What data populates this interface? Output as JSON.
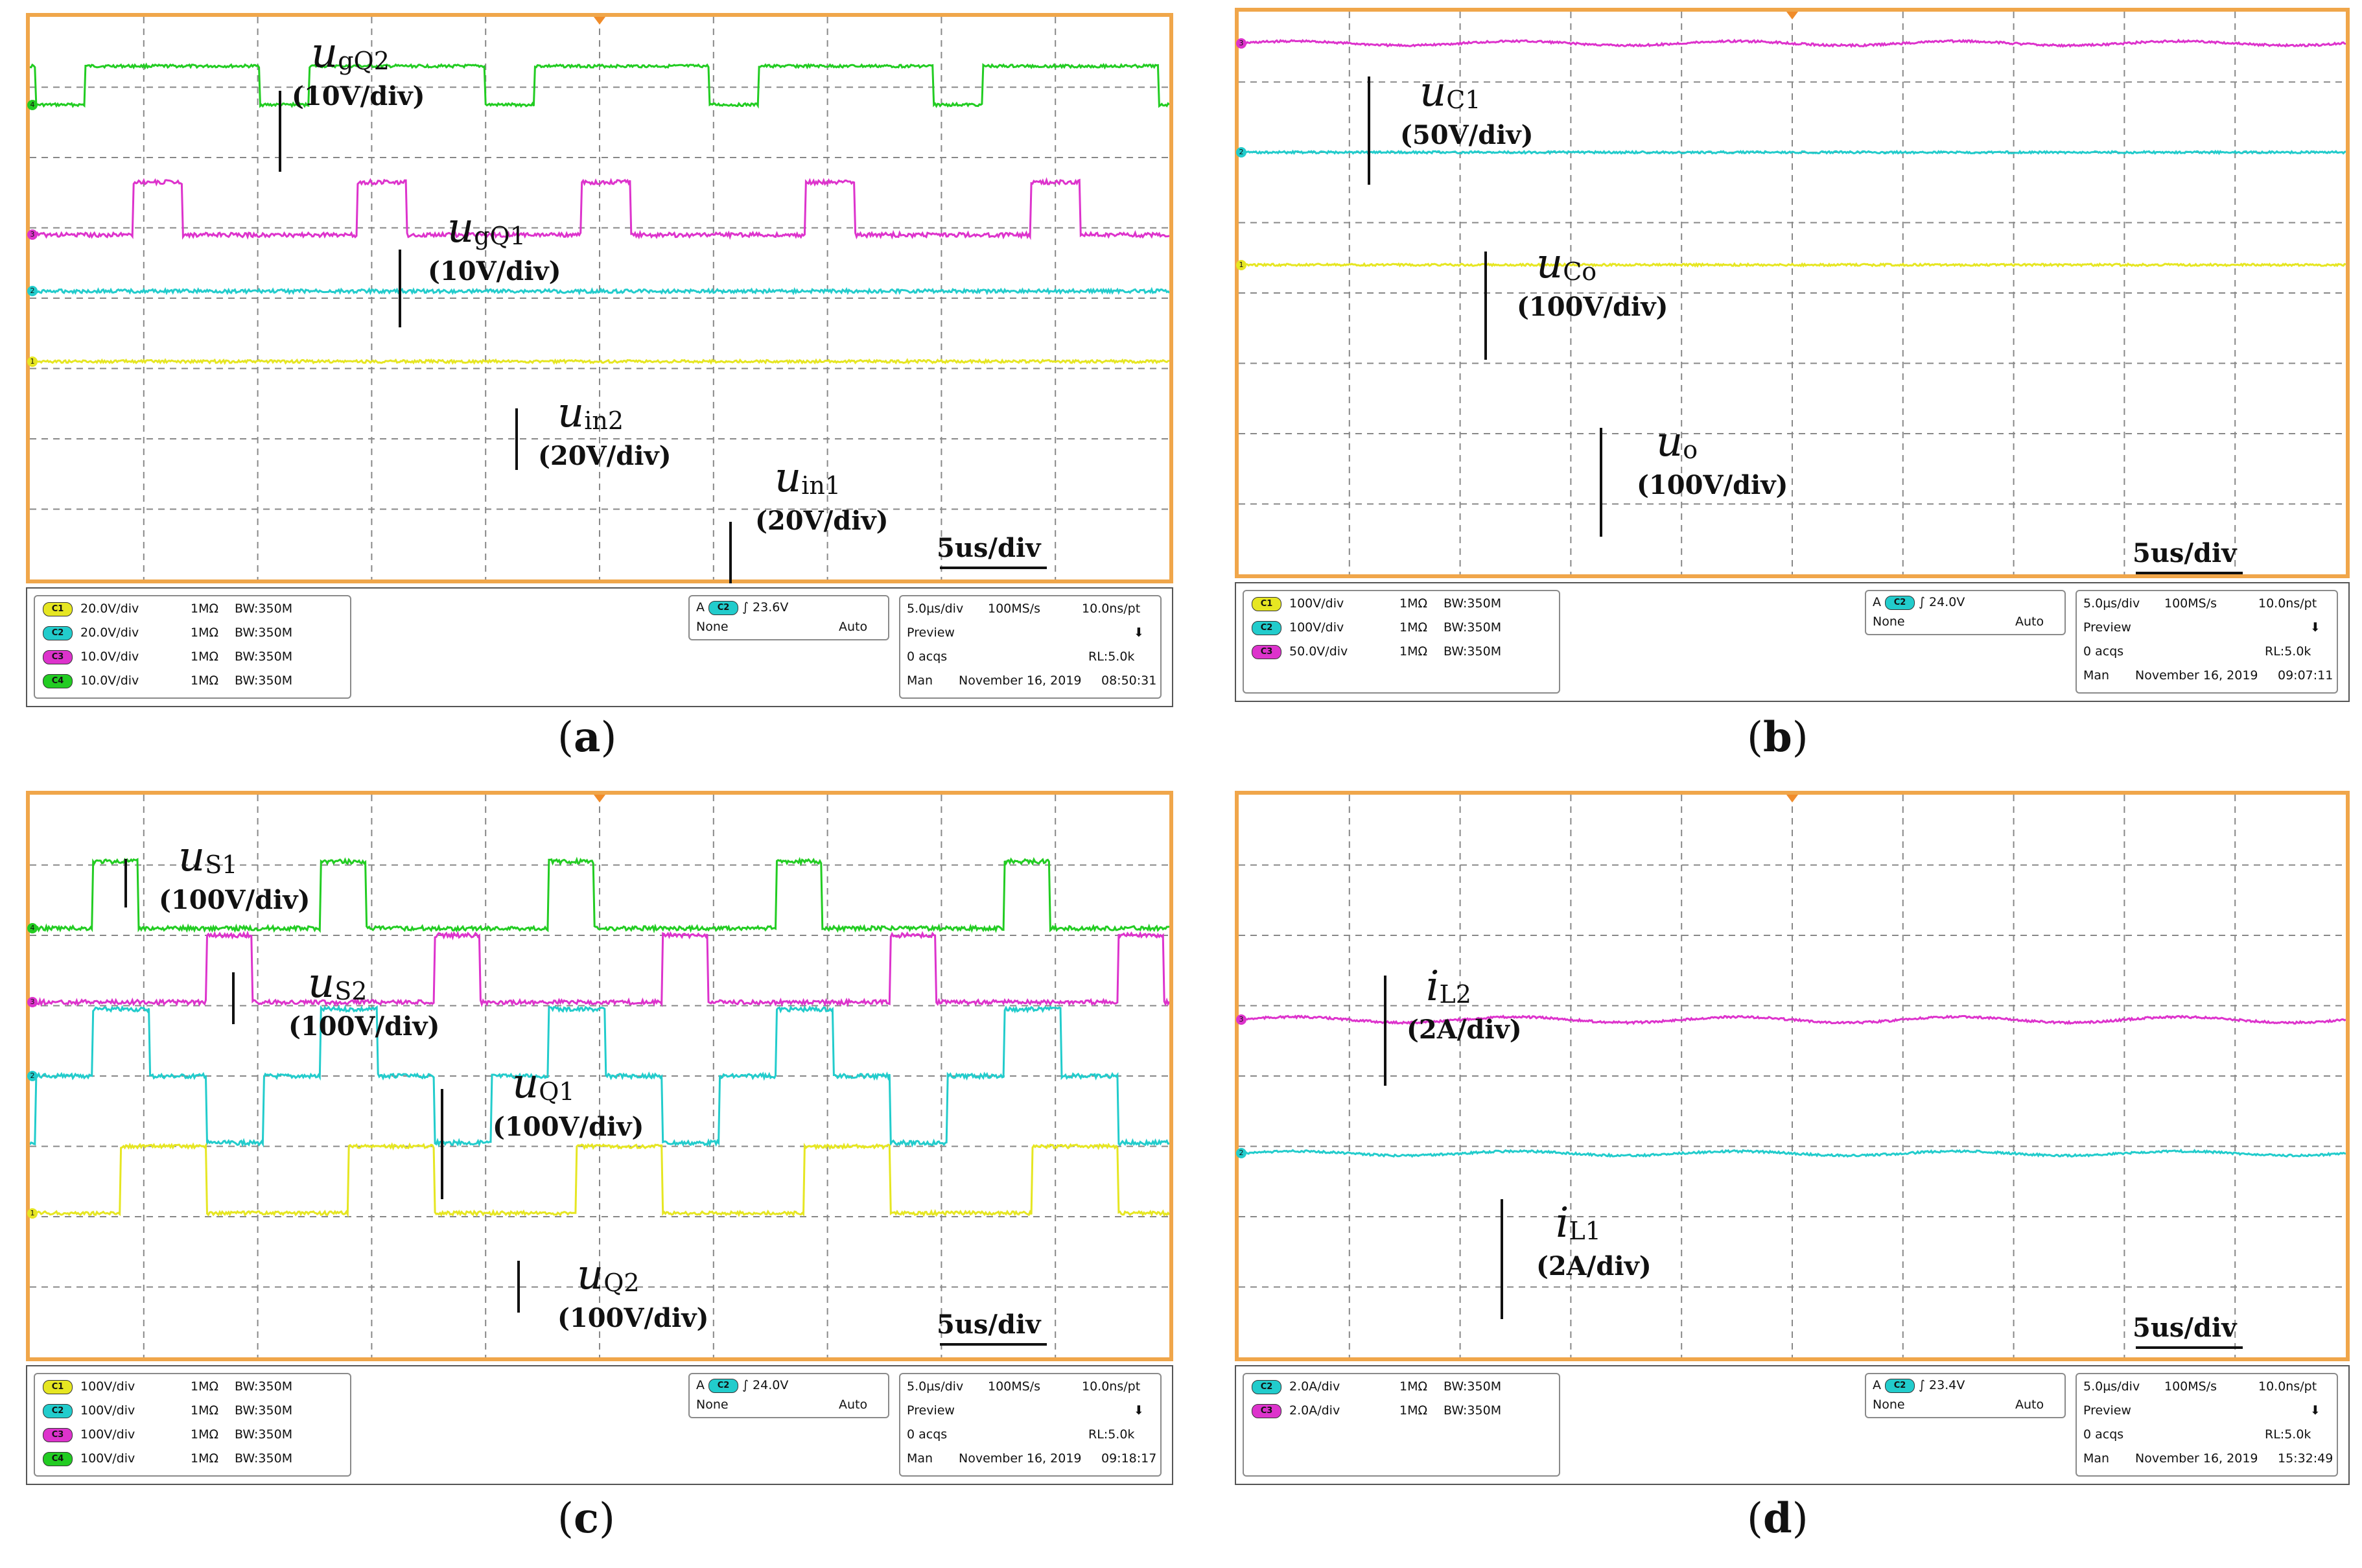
{
  "chart_data": [
    {
      "type": "line",
      "title": "(a)",
      "caption_letter": "a",
      "time_div": "5us/div",
      "series": [
        {
          "name": "ugQ2",
          "sym_main": "u",
          "sym_sub": "gQ2",
          "scale": "(10V/div)",
          "color": "#22cc22",
          "kind": "square",
          "level": 1.25,
          "high": 0.55,
          "period": 1.97,
          "duty": 0.22,
          "start": 0.05,
          "startHigh": true,
          "noise": 0.02
        },
        {
          "name": "ugQ1",
          "sym_main": "u",
          "sym_sub": "gQ1",
          "scale": "(10V/div)",
          "color": "#dd33cc",
          "kind": "square",
          "level": 3.1,
          "high": 0.75,
          "period": 1.97,
          "duty": 0.22,
          "start": 0.9,
          "startHigh": false,
          "noise": 0.03
        },
        {
          "name": "uin2",
          "sym_main": "u",
          "sym_sub": "in2",
          "scale": "(20V/div)",
          "color": "#22cccc",
          "kind": "flat",
          "level": 3.9,
          "noise": 0.025
        },
        {
          "name": "uin1",
          "sym_main": "u",
          "sym_sub": "in1",
          "scale": "(20V/div)",
          "color": "#e6e622",
          "kind": "flat",
          "level": 4.9,
          "noise": 0.02
        }
      ],
      "markers": [
        "4",
        "3",
        "2",
        "1"
      ],
      "channels": [
        {
          "tag": "C1",
          "color": "#e6e622",
          "vdiv": "20.0V/div",
          "imp": "1MΩ",
          "bw": "BW:350M"
        },
        {
          "tag": "C2",
          "color": "#22cccc",
          "vdiv": "20.0V/div",
          "imp": "1MΩ",
          "bw": "BW:350M"
        },
        {
          "tag": "C3",
          "color": "#dd33cc",
          "vdiv": "10.0V/div",
          "imp": "1MΩ",
          "bw": "BW:350M"
        },
        {
          "tag": "C4",
          "color": "#22cc22",
          "vdiv": "10.0V/div",
          "imp": "1MΩ",
          "bw": "BW:350M"
        }
      ],
      "trigger": {
        "a": "A",
        "ch": "C2",
        "level": "23.6V",
        "coupling": "None",
        "mode": "Auto"
      },
      "timebase": {
        "tdiv": "5.0µs/div",
        "rate": "100MS/s",
        "res": "10.0ns/pt",
        "state": "Preview",
        "acqs": "0 acqs",
        "rl": "RL:5.0k",
        "man": "Man",
        "date": "November 16, 2019",
        "time": "08:50:31"
      }
    },
    {
      "type": "line",
      "title": "(b)",
      "caption_letter": "b",
      "time_div": "5us/div",
      "series": [
        {
          "name": "uC1",
          "sym_main": "u",
          "sym_sub": "C1",
          "scale": "(50V/div)",
          "color": "#dd33cc",
          "kind": "wave",
          "level": 0.45,
          "amp": 0.03,
          "period": 2.0,
          "noise": 0.015
        },
        {
          "name": "uCo",
          "sym_main": "u",
          "sym_sub": "Co",
          "scale": "(100V/div)",
          "color": "#22cccc",
          "kind": "flat",
          "level": 2.0,
          "noise": 0.015
        },
        {
          "name": "uo",
          "sym_main": "u",
          "sym_sub": "o",
          "scale": "(100V/div)",
          "color": "#e6e622",
          "kind": "flat",
          "level": 3.6,
          "noise": 0.015
        }
      ],
      "markers": [
        "3",
        "2",
        "1"
      ],
      "channels": [
        {
          "tag": "C1",
          "color": "#e6e622",
          "vdiv": "100V/div",
          "imp": "1MΩ",
          "bw": "BW:350M"
        },
        {
          "tag": "C2",
          "color": "#22cccc",
          "vdiv": "100V/div",
          "imp": "1MΩ",
          "bw": "BW:350M"
        },
        {
          "tag": "C3",
          "color": "#dd33cc",
          "vdiv": "50.0V/div",
          "imp": "1MΩ",
          "bw": "BW:350M"
        }
      ],
      "trigger": {
        "a": "A",
        "ch": "C2",
        "level": "24.0V",
        "coupling": "None",
        "mode": "Auto"
      },
      "timebase": {
        "tdiv": "5.0µs/div",
        "rate": "100MS/s",
        "res": "10.0ns/pt",
        "state": "Preview",
        "acqs": "0 acqs",
        "rl": "RL:5.0k",
        "man": "Man",
        "date": "November 16, 2019",
        "time": "09:07:11"
      }
    },
    {
      "type": "line",
      "title": "(c)",
      "caption_letter": "c",
      "time_div": "5us/div",
      "series": [
        {
          "name": "uS1",
          "sym_main": "u",
          "sym_sub": "S1",
          "scale": "(100V/div)",
          "color": "#22cc22",
          "kind": "square",
          "level": 1.9,
          "high": 0.95,
          "period": 2.0,
          "duty": 0.2,
          "start": 0.55,
          "startHigh": false,
          "noise": 0.03
        },
        {
          "name": "uS2",
          "sym_main": "u",
          "sym_sub": "S2",
          "scale": "(100V/div)",
          "color": "#dd33cc",
          "kind": "square",
          "level": 2.95,
          "high": 0.95,
          "period": 2.0,
          "duty": 0.2,
          "start": 1.55,
          "startHigh": false,
          "noise": 0.03
        },
        {
          "name": "uQ1",
          "sym_main": "u",
          "sym_sub": "Q1",
          "scale": "(100V/div)",
          "color": "#22cccc",
          "kind": "tri",
          "level": 4.0,
          "high": 0.95,
          "low": 0.95,
          "period": 2.0,
          "start": 0.55,
          "noise": 0.03
        },
        {
          "name": "uQ2",
          "sym_main": "u",
          "sym_sub": "Q2",
          "scale": "(100V/div)",
          "color": "#e6e622",
          "kind": "square",
          "level": 5.95,
          "high": 0.95,
          "period": 2.0,
          "duty": 0.62,
          "start": 1.55,
          "startHigh": true,
          "noise": 0.025
        }
      ],
      "markers": [
        "4",
        "3",
        "2",
        "1"
      ],
      "channels": [
        {
          "tag": "C1",
          "color": "#e6e622",
          "vdiv": "100V/div",
          "imp": "1MΩ",
          "bw": "BW:350M"
        },
        {
          "tag": "C2",
          "color": "#22cccc",
          "vdiv": "100V/div",
          "imp": "1MΩ",
          "bw": "BW:350M"
        },
        {
          "tag": "C3",
          "color": "#dd33cc",
          "vdiv": "100V/div",
          "imp": "1MΩ",
          "bw": "BW:350M"
        },
        {
          "tag": "C4",
          "color": "#22cc22",
          "vdiv": "100V/div",
          "imp": "1MΩ",
          "bw": "BW:350M"
        }
      ],
      "trigger": {
        "a": "A",
        "ch": "C2",
        "level": "24.0V",
        "coupling": "None",
        "mode": "Auto"
      },
      "timebase": {
        "tdiv": "5.0µs/div",
        "rate": "100MS/s",
        "res": "10.0ns/pt",
        "state": "Preview",
        "acqs": "0 acqs",
        "rl": "RL:5.0k",
        "man": "Man",
        "date": "November 16, 2019",
        "time": "09:18:17"
      }
    },
    {
      "type": "line",
      "title": "(d)",
      "caption_letter": "d",
      "time_div": "5us/div",
      "series": [
        {
          "name": "iL2",
          "sym_main": "i",
          "sym_sub": "L2",
          "scale": "(2A/div)",
          "color": "#dd33cc",
          "kind": "wave",
          "level": 3.2,
          "amp": 0.04,
          "period": 2.0,
          "noise": 0.015
        },
        {
          "name": "iL1",
          "sym_main": "i",
          "sym_sub": "L1",
          "scale": "(2A/div)",
          "color": "#22cccc",
          "kind": "wave",
          "level": 5.1,
          "amp": 0.03,
          "period": 2.0,
          "noise": 0.015
        }
      ],
      "markers": [
        "3",
        "2"
      ],
      "channels": [
        {
          "tag": "C2",
          "color": "#22cccc",
          "vdiv": "2.0A/div",
          "imp": "1MΩ",
          "bw": "BW:350M"
        },
        {
          "tag": "C3",
          "color": "#dd33cc",
          "vdiv": "2.0A/div",
          "imp": "1MΩ",
          "bw": "BW:350M"
        }
      ],
      "trigger": {
        "a": "A",
        "ch": "C2",
        "level": "23.4V",
        "coupling": "None",
        "mode": "Auto"
      },
      "timebase": {
        "tdiv": "5.0µs/div",
        "rate": "100MS/s",
        "res": "10.0ns/pt",
        "state": "Preview",
        "acqs": "0 acqs",
        "rl": "RL:5.0k",
        "man": "Man",
        "date": "November 16, 2019",
        "time": "15:32:49"
      }
    }
  ]
}
